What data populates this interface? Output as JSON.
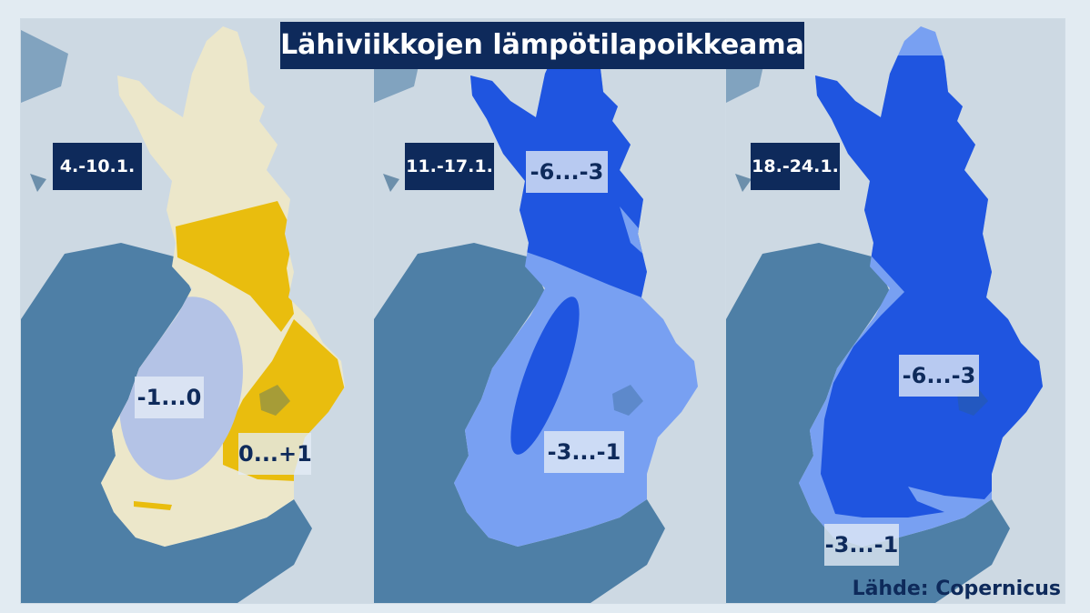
{
  "title": "Lähiviikkojen lämpötilapoikkeama",
  "source": "Lähde: Copernicus",
  "colors": {
    "background": "#e2ebf2",
    "land": "#cdd9e3",
    "sea": "#4e7fa6",
    "lakes": "#2c5e85",
    "title_box": "#0e2a5b",
    "anomaly_-6_-3": "#1f55e0",
    "anomaly_-3_-1": "#78a0f2",
    "anomaly_-1_0": "#b4c3e6",
    "anomaly_0_+1": "#e9bd0e",
    "neutral": "#ece7ca"
  },
  "panels": [
    {
      "date": "4.-10.1.",
      "labels": [
        "-1...0",
        "0...+1"
      ]
    },
    {
      "date": "11.-17.1.",
      "labels": [
        "-6...-3",
        "-3...-1"
      ]
    },
    {
      "date": "18.-24.1.",
      "labels": [
        "-6...-3",
        "-3...-1"
      ]
    }
  ]
}
